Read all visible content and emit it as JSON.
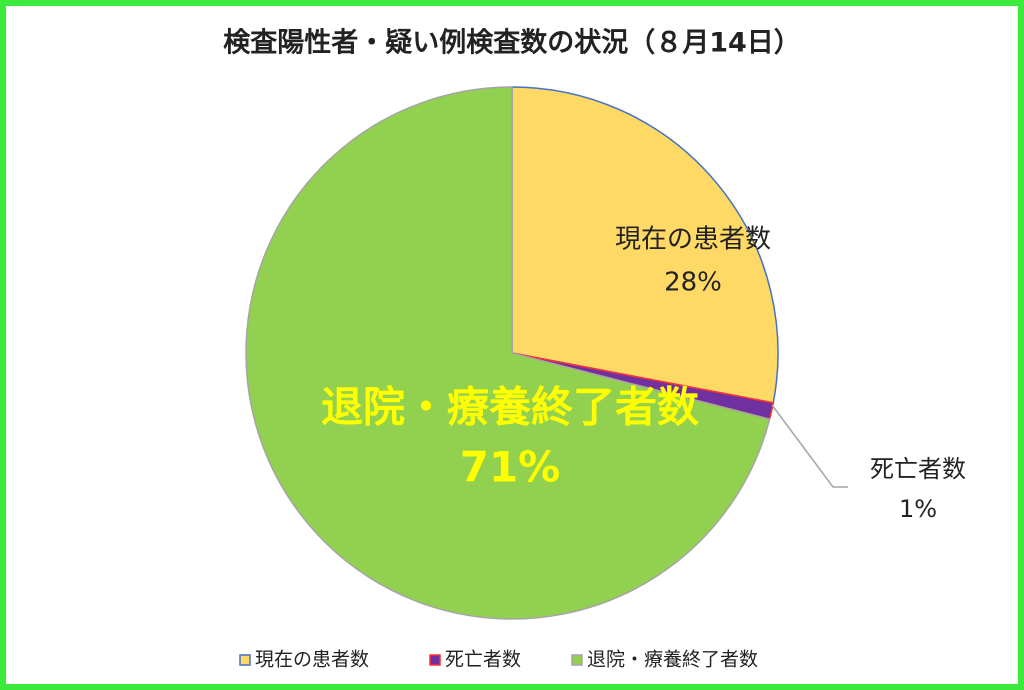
{
  "chart_data": {
    "type": "pie",
    "title": "検査陽性者・疑い例検査数の状況（８月14日）",
    "categories": [
      "現在の患者数",
      "死亡者数",
      "退院・療養終了者数"
    ],
    "values": [
      28,
      1,
      71
    ],
    "value_labels": [
      "28%",
      "1%",
      "71%"
    ],
    "colors": [
      "#FFD966",
      "#7030A0",
      "#92D050"
    ],
    "edge_colors": [
      "#4472C4",
      "#FF3030",
      "#A5A5A5"
    ],
    "legend": "bottom"
  }
}
